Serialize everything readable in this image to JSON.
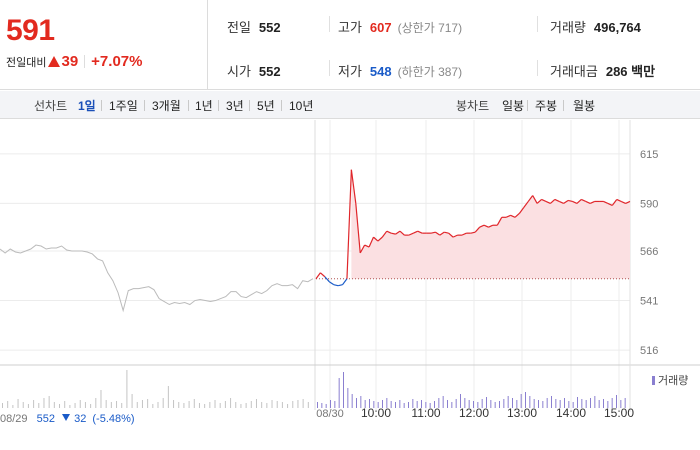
{
  "quote": {
    "price": "591",
    "change_label": "전일대비",
    "change_amount": "39",
    "change_rate": "+7.07%",
    "stats": {
      "prev_close": {
        "label": "전일",
        "value": "552"
      },
      "open": {
        "label": "시가",
        "value": "552"
      },
      "high": {
        "label": "고가",
        "value": "607",
        "limit_text": "(상한가 717)"
      },
      "low": {
        "label": "저가",
        "value": "548",
        "limit_text": "(하한가 387)"
      },
      "volume": {
        "label": "거래량",
        "value": "496,764"
      },
      "trade_value": {
        "label": "거래대금",
        "value": "286 백만"
      }
    }
  },
  "period_bar": {
    "line_chart_label": "선차트",
    "line_tabs": [
      "1일",
      "1주일",
      "3개월",
      "1년",
      "3년",
      "5년",
      "10년"
    ],
    "active_line_tab": "1일",
    "candle_chart_label": "봉차트",
    "candle_tabs": [
      "일봉",
      "주봉",
      "월봉"
    ]
  },
  "chart_data": {
    "type": "line",
    "y_ticks": [
      615,
      590,
      566,
      541,
      516
    ],
    "ylim": [
      511,
      622
    ],
    "x_labels": [
      "08/30",
      "10:00",
      "11:00",
      "12:00",
      "13:00",
      "14:00",
      "15:00"
    ],
    "base_price": 552,
    "colors": {
      "up": "#e0262b",
      "down": "#1a5bc8",
      "prev": "#bbbbbb",
      "up_fill": "#fbe0e2",
      "volume_today": "#8a7fd0",
      "volume_prev": "#c4c4c4"
    },
    "prev_day_series": [
      [
        0,
        567
      ],
      [
        1,
        565
      ],
      [
        2,
        567
      ],
      [
        3,
        565.5
      ],
      [
        4,
        565
      ],
      [
        5,
        566
      ],
      [
        6,
        567
      ],
      [
        7,
        569
      ],
      [
        8,
        568.5
      ],
      [
        9,
        567
      ],
      [
        10,
        567.5
      ],
      [
        11,
        567.5
      ],
      [
        12,
        568.5
      ],
      [
        13,
        566.5
      ],
      [
        14,
        566
      ],
      [
        15,
        566
      ],
      [
        16,
        566
      ],
      [
        17,
        565.5
      ],
      [
        18,
        564.5
      ],
      [
        19,
        562
      ],
      [
        20,
        561
      ],
      [
        21,
        555
      ],
      [
        22,
        551
      ],
      [
        23,
        545
      ],
      [
        24,
        536
      ],
      [
        25,
        546
      ],
      [
        26,
        547
      ],
      [
        27,
        547
      ],
      [
        28,
        547.5
      ],
      [
        29,
        548
      ],
      [
        30,
        546.5
      ],
      [
        31,
        542
      ],
      [
        32,
        540.5
      ],
      [
        33,
        539
      ],
      [
        34,
        540
      ],
      [
        35,
        539.5
      ],
      [
        36,
        540
      ],
      [
        37,
        539
      ],
      [
        38,
        541
      ],
      [
        39,
        541.5
      ],
      [
        40,
        541
      ],
      [
        41,
        540.5
      ],
      [
        42,
        541
      ],
      [
        43,
        542
      ],
      [
        44,
        543
      ],
      [
        45,
        545.5
      ],
      [
        46,
        545.5
      ],
      [
        47,
        543
      ],
      [
        48,
        542.5
      ],
      [
        49,
        544
      ],
      [
        50,
        545.5
      ],
      [
        51,
        544.5
      ],
      [
        52,
        546
      ],
      [
        53,
        548.5
      ],
      [
        54,
        549.5
      ],
      [
        55,
        548.5
      ],
      [
        56,
        548.5
      ],
      [
        57,
        549
      ],
      [
        58,
        547
      ],
      [
        59,
        551
      ],
      [
        60,
        550.5
      ],
      [
        61,
        552
      ]
    ],
    "today_series": [
      [
        0,
        552
      ],
      [
        1,
        555
      ],
      [
        2,
        553
      ],
      [
        3,
        550.5
      ],
      [
        4,
        549
      ],
      [
        5,
        548.5
      ],
      [
        6,
        549
      ],
      [
        7,
        552
      ],
      [
        8,
        607
      ],
      [
        9,
        590
      ],
      [
        10,
        565
      ],
      [
        11,
        569
      ],
      [
        12,
        568
      ],
      [
        13,
        573
      ],
      [
        14,
        571
      ],
      [
        15,
        573
      ],
      [
        16,
        576
      ],
      [
        17,
        575
      ],
      [
        18,
        574.5
      ],
      [
        19,
        576
      ],
      [
        20,
        574
      ],
      [
        21,
        574
      ],
      [
        22,
        575
      ],
      [
        23,
        576
      ],
      [
        24,
        575
      ],
      [
        25,
        575
      ],
      [
        26,
        575
      ],
      [
        27,
        575.5
      ],
      [
        28,
        574
      ],
      [
        29,
        575.5
      ],
      [
        30,
        575
      ],
      [
        31,
        573
      ],
      [
        32,
        574
      ],
      [
        33,
        574
      ],
      [
        34,
        575
      ],
      [
        35,
        575
      ],
      [
        36,
        575.5
      ],
      [
        37,
        578
      ],
      [
        38,
        579
      ],
      [
        39,
        578
      ],
      [
        40,
        579
      ],
      [
        41,
        579
      ],
      [
        42,
        583
      ],
      [
        43,
        583
      ],
      [
        44,
        584
      ],
      [
        45,
        583
      ],
      [
        46,
        585
      ],
      [
        47,
        588
      ],
      [
        48,
        591
      ],
      [
        49,
        594
      ],
      [
        50,
        590
      ],
      [
        51,
        592
      ],
      [
        52,
        591
      ],
      [
        53,
        590
      ],
      [
        54,
        592
      ],
      [
        55,
        591
      ],
      [
        56,
        590
      ],
      [
        57,
        591.5
      ],
      [
        58,
        591
      ],
      [
        59,
        590
      ],
      [
        60,
        592
      ],
      [
        61,
        591
      ],
      [
        62,
        590
      ],
      [
        63,
        591
      ],
      [
        64,
        591
      ],
      [
        65,
        591
      ],
      [
        66,
        590
      ],
      [
        67,
        589
      ],
      [
        68,
        592
      ],
      [
        69,
        591
      ],
      [
        70,
        590
      ],
      [
        71,
        591
      ]
    ],
    "volume_prev": [
      5,
      7,
      3,
      9,
      6,
      4,
      8,
      5,
      10,
      12,
      6,
      4,
      7,
      3,
      5,
      8,
      6,
      4,
      10,
      18,
      8,
      6,
      7,
      5,
      38,
      14,
      6,
      8,
      9,
      4,
      6,
      10,
      22,
      8,
      6,
      5,
      7,
      9,
      5,
      4,
      6,
      8,
      5,
      7,
      10,
      6,
      4,
      5,
      7,
      9,
      6,
      5,
      8,
      7,
      6,
      4,
      7,
      8,
      9,
      6
    ],
    "volume_today": [
      6,
      5,
      4,
      8,
      7,
      30,
      36,
      20,
      14,
      10,
      12,
      8,
      9,
      7,
      6,
      8,
      10,
      7,
      6,
      8,
      5,
      6,
      9,
      7,
      8,
      6,
      5,
      7,
      10,
      12,
      8,
      6,
      9,
      14,
      10,
      8,
      7,
      6,
      9,
      11,
      8,
      6,
      7,
      9,
      12,
      10,
      8,
      14,
      16,
      12,
      9,
      8,
      7,
      10,
      12,
      9,
      8,
      10,
      7,
      6,
      11,
      9,
      8,
      10,
      12,
      8,
      9,
      7,
      10,
      13,
      8,
      10
    ]
  },
  "bottom_info": {
    "date": "08/29",
    "close": "552",
    "change": "32",
    "rate": "(-5.48%)"
  },
  "volume_legend": "거래량"
}
